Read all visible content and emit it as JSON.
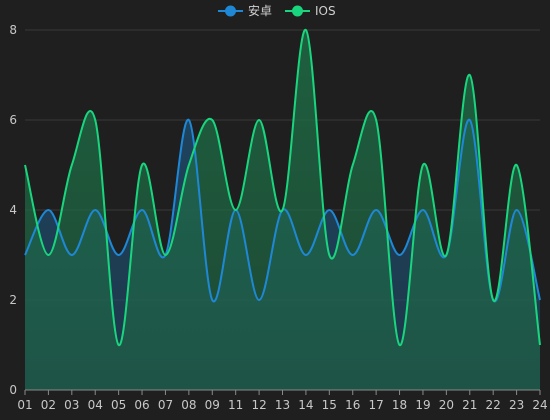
{
  "chart_data": {
    "type": "area",
    "categories": [
      "01",
      "02",
      "03",
      "04",
      "05",
      "06",
      "07",
      "08",
      "09",
      "11",
      "12",
      "13",
      "14",
      "15",
      "16",
      "17",
      "18",
      "19",
      "20",
      "21",
      "22",
      "23",
      "24"
    ],
    "series": [
      {
        "name": "安卓",
        "values": [
          3,
          4,
          3,
          4,
          3,
          4,
          3,
          6,
          2,
          4,
          2,
          4,
          3,
          4,
          3,
          4,
          3,
          4,
          3,
          6,
          2,
          4,
          2
        ],
        "line_color": "#1e88d6",
        "fill_color": "#1e4a6a"
      },
      {
        "name": "IOS",
        "values": [
          5,
          3,
          5,
          6,
          1,
          5,
          3,
          5,
          6,
          4,
          6,
          4,
          8,
          3,
          5,
          6,
          1,
          5,
          3,
          7,
          2,
          5,
          1
        ],
        "line_color": "#19d67e",
        "fill_color": "#1e6b45"
      }
    ],
    "ylim": [
      0,
      8
    ],
    "yticks": [
      "0",
      "2",
      "4",
      "6",
      "8"
    ],
    "grid": true,
    "legend_position": "top-center",
    "title": "",
    "xlabel": "",
    "ylabel": ""
  }
}
